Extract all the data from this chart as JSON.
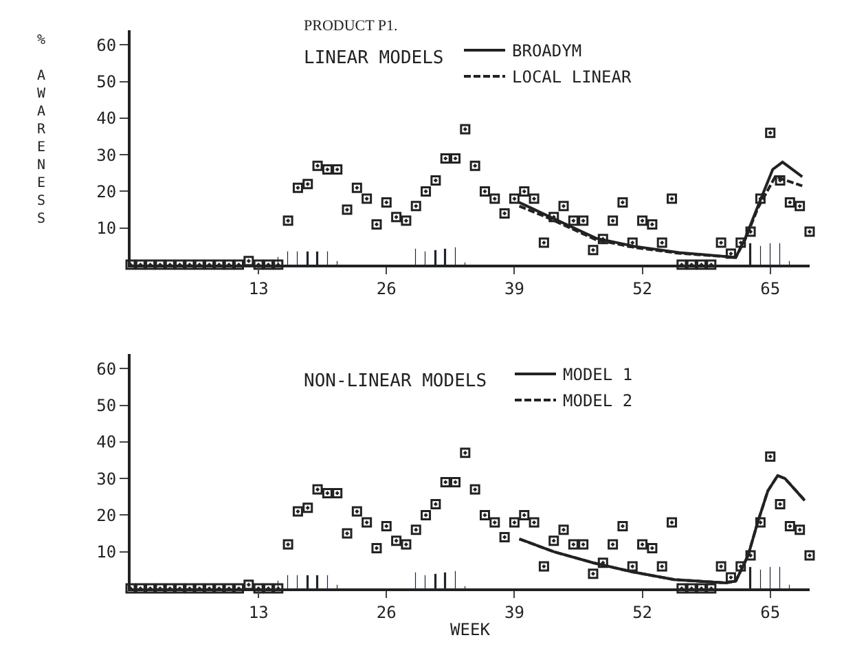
{
  "chart_data": [
    {
      "type": "scatter",
      "title": "LINEAR MODELS",
      "ylabel": "% AWARENESS",
      "annotations": [
        "PRODUCT P1."
      ],
      "xlim": [
        0,
        69
      ],
      "xticks": [
        13,
        26,
        39,
        52,
        65
      ],
      "ylim": [
        0,
        64
      ],
      "yticks": [
        10,
        20,
        30,
        40,
        50,
        60
      ],
      "legend": "top right",
      "series": [
        {
          "marker": "square",
          "color": "#222222",
          "x": [
            0,
            1,
            2,
            3,
            4,
            5,
            6,
            7,
            8,
            9,
            10,
            11,
            12,
            13,
            14,
            15,
            16,
            17,
            18,
            19,
            20,
            21,
            22,
            23,
            24,
            25,
            26,
            27,
            28,
            29,
            30,
            31,
            32,
            33,
            34,
            35,
            36,
            37,
            38,
            39,
            40,
            41,
            42,
            43,
            44,
            45,
            46,
            47,
            48,
            49,
            50,
            51,
            52,
            53,
            54,
            55,
            56,
            57,
            58,
            59,
            60,
            61,
            62,
            63,
            64,
            65,
            66,
            67,
            68,
            69
          ],
          "values": [
            0,
            0,
            0,
            0,
            0,
            0,
            0,
            0,
            0,
            0,
            0,
            0,
            1,
            0,
            0,
            0,
            12,
            21,
            22,
            27,
            26,
            26,
            15,
            21,
            18,
            11,
            17,
            13,
            12,
            16,
            20,
            23,
            29,
            29,
            37,
            27,
            20,
            18,
            14,
            18,
            20,
            18,
            6,
            13,
            16,
            12,
            12,
            4,
            7,
            12,
            17,
            6,
            12,
            11,
            6,
            18,
            0,
            0,
            0,
            0,
            6,
            3,
            6,
            9,
            18,
            36,
            23,
            17,
            16,
            9
          ]
        },
        {
          "type": "bar",
          "color": "#222222",
          "x": [
            15,
            16,
            17,
            18,
            19,
            20,
            21,
            29,
            30,
            31,
            32,
            33,
            34,
            63,
            64,
            65,
            66,
            67
          ],
          "values": [
            2,
            3.5,
            3.5,
            3.5,
            3.5,
            3.5,
            1,
            4.5,
            3.7,
            3.9,
            4.3,
            4.8,
            0.5,
            6,
            5,
            6,
            6,
            1
          ]
        },
        {
          "type": "line",
          "name": "BROADYM",
          "color": "#222222",
          "line_style": "solid",
          "x": [
            39.5,
            42.4,
            47.3,
            51.2,
            55.75,
            61.5,
            62.5,
            63.75,
            65.25,
            66.25,
            68.25
          ],
          "values": [
            17,
            13.3,
            7.2,
            5,
            3.3,
            2,
            7.5,
            16,
            26,
            28,
            24
          ]
        },
        {
          "type": "line",
          "name": "LOCAL LINEAR",
          "color": "#222222",
          "line_style": "dashed",
          "x": [
            39.5,
            42.4,
            47.3,
            51.2,
            55.75,
            61.5,
            62.5,
            63.75,
            65.5,
            68.25
          ],
          "values": [
            16,
            12.8,
            6.8,
            4.7,
            3.1,
            2,
            7.2,
            15.5,
            24,
            21.5
          ]
        }
      ]
    },
    {
      "type": "scatter",
      "title": "NON-LINEAR MODELS",
      "xlabel": "WEEK",
      "xlim": [
        0,
        69
      ],
      "xticks": [
        13,
        26,
        39,
        52,
        65
      ],
      "ylim": [
        0,
        64
      ],
      "yticks": [
        10,
        20,
        30,
        40,
        50,
        60
      ],
      "legend": "top right",
      "series": [
        {
          "marker": "square",
          "color": "#222222",
          "x": [
            0,
            1,
            2,
            3,
            4,
            5,
            6,
            7,
            8,
            9,
            10,
            11,
            12,
            13,
            14,
            15,
            16,
            17,
            18,
            19,
            20,
            21,
            22,
            23,
            24,
            25,
            26,
            27,
            28,
            29,
            30,
            31,
            32,
            33,
            34,
            35,
            36,
            37,
            38,
            39,
            40,
            41,
            42,
            43,
            44,
            45,
            46,
            47,
            48,
            49,
            50,
            51,
            52,
            53,
            54,
            55,
            56,
            57,
            58,
            59,
            60,
            61,
            62,
            63,
            64,
            65,
            66,
            67,
            68,
            69
          ],
          "values": [
            0,
            0,
            0,
            0,
            0,
            0,
            0,
            0,
            0,
            0,
            0,
            0,
            1,
            0,
            0,
            0,
            12,
            21,
            22,
            27,
            26,
            26,
            15,
            21,
            18,
            11,
            17,
            13,
            12,
            16,
            20,
            23,
            29,
            29,
            37,
            27,
            20,
            18,
            14,
            18,
            20,
            18,
            6,
            13,
            16,
            12,
            12,
            4,
            7,
            12,
            17,
            6,
            12,
            11,
            6,
            18,
            0,
            0,
            0,
            0,
            6,
            3,
            6,
            9,
            18,
            36,
            23,
            17,
            16,
            9
          ]
        },
        {
          "type": "bar",
          "color": "#222222",
          "x": [
            15,
            16,
            17,
            18,
            19,
            20,
            21,
            29,
            30,
            31,
            32,
            33,
            34,
            63,
            64,
            65,
            66,
            67
          ],
          "values": [
            2,
            3.5,
            3.5,
            3.5,
            3.5,
            3.5,
            1,
            4.5,
            3.7,
            3.9,
            4.3,
            4.8,
            0.5,
            6,
            5,
            6,
            6,
            1
          ]
        },
        {
          "type": "line",
          "name": "MODEL 1",
          "color": "#222222",
          "line_style": "solid",
          "x": [
            39.5,
            43,
            47,
            51,
            55.25,
            60.5,
            61.5,
            62.75,
            63.75,
            64.75,
            65.75,
            66.5,
            68.5
          ],
          "values": [
            13.5,
            10,
            7,
            4.5,
            2.4,
            1.5,
            2,
            9,
            18.3,
            26.6,
            30.8,
            30,
            24
          ]
        },
        {
          "type": "line",
          "name": "MODEL 2",
          "color": "#222222",
          "line_style": "dashed",
          "x": [
            39.5,
            43,
            47,
            51,
            55.25,
            60.5,
            61.5,
            62.75,
            63.75,
            64.75,
            65.75,
            66.5,
            68.5
          ],
          "values": [
            13.5,
            10,
            7,
            4.5,
            2.4,
            1.5,
            2,
            9,
            18.3,
            26.6,
            30.8,
            30,
            24
          ]
        }
      ]
    }
  ]
}
